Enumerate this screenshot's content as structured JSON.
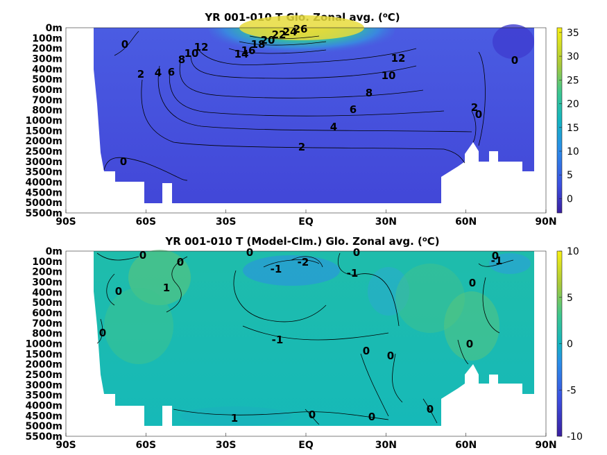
{
  "chart_data": [
    {
      "type": "heatmap",
      "title": "YR 001-010 T Glo. Zonal avg. (",
      "title_sup": "o",
      "title_tail": "C)",
      "x_ticks": [
        "90S",
        "60S",
        "30S",
        "EQ",
        "30N",
        "60N",
        "90N"
      ],
      "x_values": [
        -90,
        -60,
        -30,
        0,
        30,
        60,
        90
      ],
      "y_ticks": [
        "0m",
        "100m",
        "200m",
        "300m",
        "400m",
        "500m",
        "600m",
        "700m",
        "800m",
        "1000m",
        "1500m",
        "2000m",
        "2500m",
        "3000m",
        "3500m",
        "4000m",
        "4500m",
        "5000m",
        "5500m"
      ],
      "colorbar": {
        "ticks": [
          "35",
          "30",
          "25",
          "20",
          "15",
          "10",
          "5",
          "0"
        ],
        "values": [
          35,
          30,
          25,
          20,
          15,
          10,
          5,
          0
        ],
        "range": [
          -3,
          36
        ]
      },
      "contour_labels": [
        "0",
        "2",
        "4",
        "6",
        "8",
        "10",
        "12",
        "14",
        "16",
        "18",
        "20",
        "22",
        "24",
        "26",
        "0",
        "2",
        "4",
        "6",
        "8",
        "10",
        "12",
        "0",
        "2",
        "0"
      ]
    },
    {
      "type": "heatmap",
      "title": "YR 001-010 T (Model-Clm.) Glo. Zonal avg. (",
      "title_sup": "o",
      "title_tail": "C)",
      "x_ticks": [
        "90S",
        "60S",
        "30S",
        "EQ",
        "30N",
        "60N",
        "90N"
      ],
      "x_values": [
        -90,
        -60,
        -30,
        0,
        30,
        60,
        90
      ],
      "y_ticks": [
        "0m",
        "100m",
        "200m",
        "300m",
        "400m",
        "500m",
        "600m",
        "700m",
        "800m",
        "1000m",
        "1500m",
        "2000m",
        "2500m",
        "3000m",
        "3500m",
        "4000m",
        "4500m",
        "5000m",
        "5500m"
      ],
      "colorbar": {
        "ticks": [
          "10",
          "5",
          "0",
          "-5",
          "-10"
        ],
        "values": [
          10,
          5,
          0,
          -5,
          -10
        ],
        "range": [
          -10,
          10
        ]
      },
      "contour_labels": [
        "0",
        "0",
        "0",
        "0",
        "1",
        "0",
        "0",
        "-1",
        "-2",
        "-1",
        "-1",
        "0",
        "-1",
        "0",
        "0",
        "0",
        "1",
        "0",
        "0",
        "0",
        "0"
      ]
    }
  ],
  "colors": {
    "ocean_top_base": "#4a55e0",
    "ocean_bottom_base": "#1fb8b0",
    "land": "#ffffff"
  }
}
